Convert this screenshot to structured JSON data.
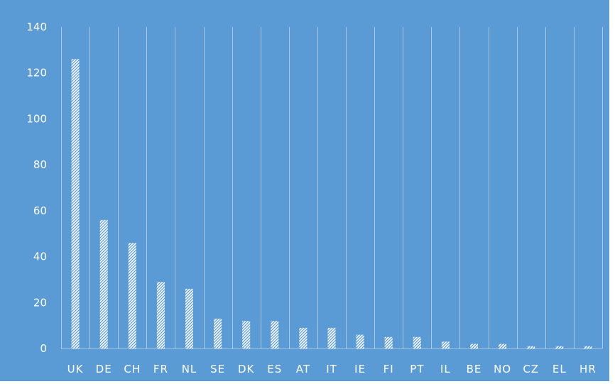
{
  "chart_data": {
    "type": "bar",
    "title": "",
    "xlabel": "",
    "ylabel": "",
    "categories": [
      "UK",
      "DE",
      "CH",
      "FR",
      "NL",
      "SE",
      "DK",
      "ES",
      "AT",
      "IT",
      "IE",
      "FI",
      "PT",
      "IL",
      "BE",
      "NO",
      "CZ",
      "EL",
      "HR"
    ],
    "values": [
      126,
      56,
      46,
      29,
      26,
      13,
      12,
      12,
      9,
      9,
      6,
      5,
      5,
      3,
      2,
      2,
      1,
      1,
      1
    ],
    "ylim": [
      0,
      140
    ],
    "yticks": [
      0,
      20,
      40,
      60,
      80,
      100,
      120,
      140
    ],
    "grid": "vertical",
    "legend": "none",
    "colors": {
      "background": "#5b9bd5",
      "bar_fill": "#ffffff",
      "bar_hatch": "#5b9bd5",
      "grid": "#a9c9ea",
      "text": "#ffffff"
    }
  }
}
